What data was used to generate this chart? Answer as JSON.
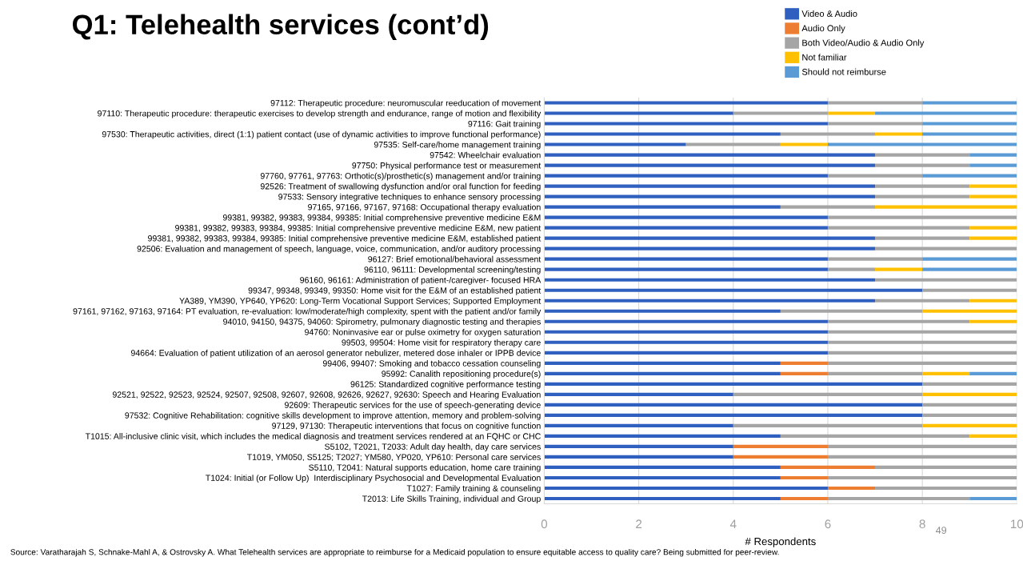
{
  "chart_data": {
    "type": "bar",
    "orientation": "horizontal",
    "stacked": true,
    "title": "Q1: Telehealth services (cont’d)",
    "xlabel": "# Respondents",
    "categories": [
      "97112: Therapeutic procedure: neuromuscular reeducation of movement",
      "97110: Therapeutic procedure: therapeutic exercises to develop strength and endurance, range of motion and flexibility",
      "97116: Gait training",
      "97530: Therapeutic activities, direct (1:1) patient contact (use of dynamic activities to improve functional performance)",
      "97535: Self-care/home management training",
      "97542: Wheelchair evaluation",
      "97750: Physical performance test or measurement",
      "97760, 97761, 97763: Orthotic(s)/prosthetic(s) management and/or training",
      "92526: Treatment of swallowing dysfunction and/or oral function for feeding",
      "97533: Sensory integrative techniques to enhance sensory processing",
      "97165, 97166, 97167, 97168: Occupational therapy evaluation",
      "99381, 99382, 99383, 99384, 99385: Initial comprehensive preventive medicine E&M",
      "99381, 99382, 99383, 99384, 99385: Initial comprehensive preventive medicine E&M, new patient",
      "99381, 99382, 99383, 99384, 99385: Initial comprehensive preventive medicine E&M, established patient",
      "92506: Evaluation and management of speech, language, voice, communication, and/or auditory processing",
      "96127: Brief emotional/behavioral assessment",
      "96110, 96111: Developmental screening/testing",
      "96160, 96161: Administration of patient-/caregiver- focused HRA",
      "99347, 99348, 99349, 99350: Home visit for the E&M of an established patient",
      "YA389, YM390, YP640, YP620: Long-Term Vocational Support Services; Supported Employment",
      "97161, 97162, 97163, 97164: PT evaluation, re-evaluation: low/moderate/high complexity, spent with the patient and/or family",
      "94010, 94150, 94375, 94060: Spirometry, pulmonary diagnostic testing and therapies",
      "94760: Noninvasive ear or pulse oximetry for oxygen saturation",
      "99503, 99504: Home visit for respiratory therapy care",
      "94664: Evaluation of patient utilization of an aerosol generator nebulizer, metered dose inhaler or IPPB device",
      "99406, 99407: Smoking and tobacco cessation counseling",
      "95992: Canalith repositioning procedure(s)",
      "96125: Standardized cognitive performance testing",
      "92521, 92522, 92523, 92524, 92507, 92508, 92607, 92608, 92626, 92627, 92630: Speech and Hearing Evaluation",
      "92609: Therapeutic services for the use of speech-generating device",
      "97532: Cognitive Rehabilitation: cognitive skills development to improve attention, memory and problem-solving",
      "97129, 97130: Therapeutic interventions that focus on cognitive function",
      "T1015: All-inclusive clinic visit, which includes the medical diagnosis and treatment services rendered at an FQHC or CHC",
      "S5102, T2021, T2033: Adult day health, day care services",
      "T1019, YM050, S5125; T2027; YM580, YP020, YP610: Personal care services",
      "S5110, T2041: Natural supports education, home care training",
      "T1024: Initial (or Follow Up)  Interdisciplinary Psychosocial and Developmental Evaluation",
      "T1027: Family training & counseling",
      "T2013: Life Skills Training, individual and Group"
    ],
    "series": [
      {
        "name": "Video & Audio",
        "color": "#2f5fbf",
        "values": [
          6,
          4,
          6,
          5,
          3,
          7,
          7,
          6,
          7,
          7,
          5,
          6,
          6,
          7,
          7,
          6,
          6,
          7,
          8,
          7,
          5,
          6,
          6,
          6,
          6,
          5,
          5,
          8,
          4,
          8,
          8,
          4,
          5,
          4,
          4,
          5,
          5,
          6,
          5
        ]
      },
      {
        "name": "Audio Only",
        "color": "#ed7d31",
        "values": [
          0,
          0,
          0,
          0,
          0,
          0,
          0,
          0,
          0,
          0,
          0,
          0,
          0,
          0,
          0,
          0,
          0,
          0,
          0,
          0,
          0,
          0,
          0,
          0,
          0,
          1,
          1,
          0,
          0,
          0,
          0,
          0,
          0,
          2,
          2,
          2,
          1,
          1,
          1
        ]
      },
      {
        "name": "Both Video/Audio & Audio Only",
        "color": "#a5a5a5",
        "values": [
          2,
          2,
          2,
          2,
          2,
          2,
          2,
          2,
          2,
          2,
          2,
          4,
          3,
          2,
          3,
          2,
          1,
          3,
          2,
          2,
          3,
          3,
          4,
          4,
          4,
          4,
          2,
          2,
          4,
          2,
          2,
          4,
          4,
          4,
          4,
          3,
          4,
          3,
          3
        ]
      },
      {
        "name": "Not familiar",
        "color": "#ffc000",
        "values": [
          0,
          1,
          0,
          1,
          1,
          0,
          0,
          0,
          1,
          1,
          3,
          0,
          1,
          1,
          0,
          0,
          1,
          0,
          0,
          1,
          2,
          1,
          0,
          0,
          0,
          0,
          1,
          0,
          2,
          0,
          0,
          2,
          1,
          0,
          0,
          0,
          0,
          0,
          0
        ]
      },
      {
        "name": "Should not reimburse",
        "color": "#5b9bd5",
        "values": [
          2,
          3,
          2,
          2,
          4,
          1,
          1,
          2,
          0,
          0,
          0,
          0,
          0,
          0,
          0,
          2,
          2,
          0,
          0,
          0,
          0,
          0,
          0,
          0,
          0,
          0,
          1,
          0,
          0,
          0,
          0,
          0,
          0,
          0,
          0,
          0,
          0,
          0,
          1
        ]
      }
    ],
    "xlim": [
      0,
      10
    ],
    "xticks": [
      0,
      2,
      4,
      6,
      8,
      10
    ],
    "grid": "x",
    "legend": "top right",
    "annotations": [
      "Source: Varatharajah S, Schnake-Mahl A, & Ostrovsky A. What Telehealth services are appropriate to reimburse for a Medicaid population to ensure equitable access to quality care? Being submitted for peer-review.",
      "49"
    ]
  }
}
